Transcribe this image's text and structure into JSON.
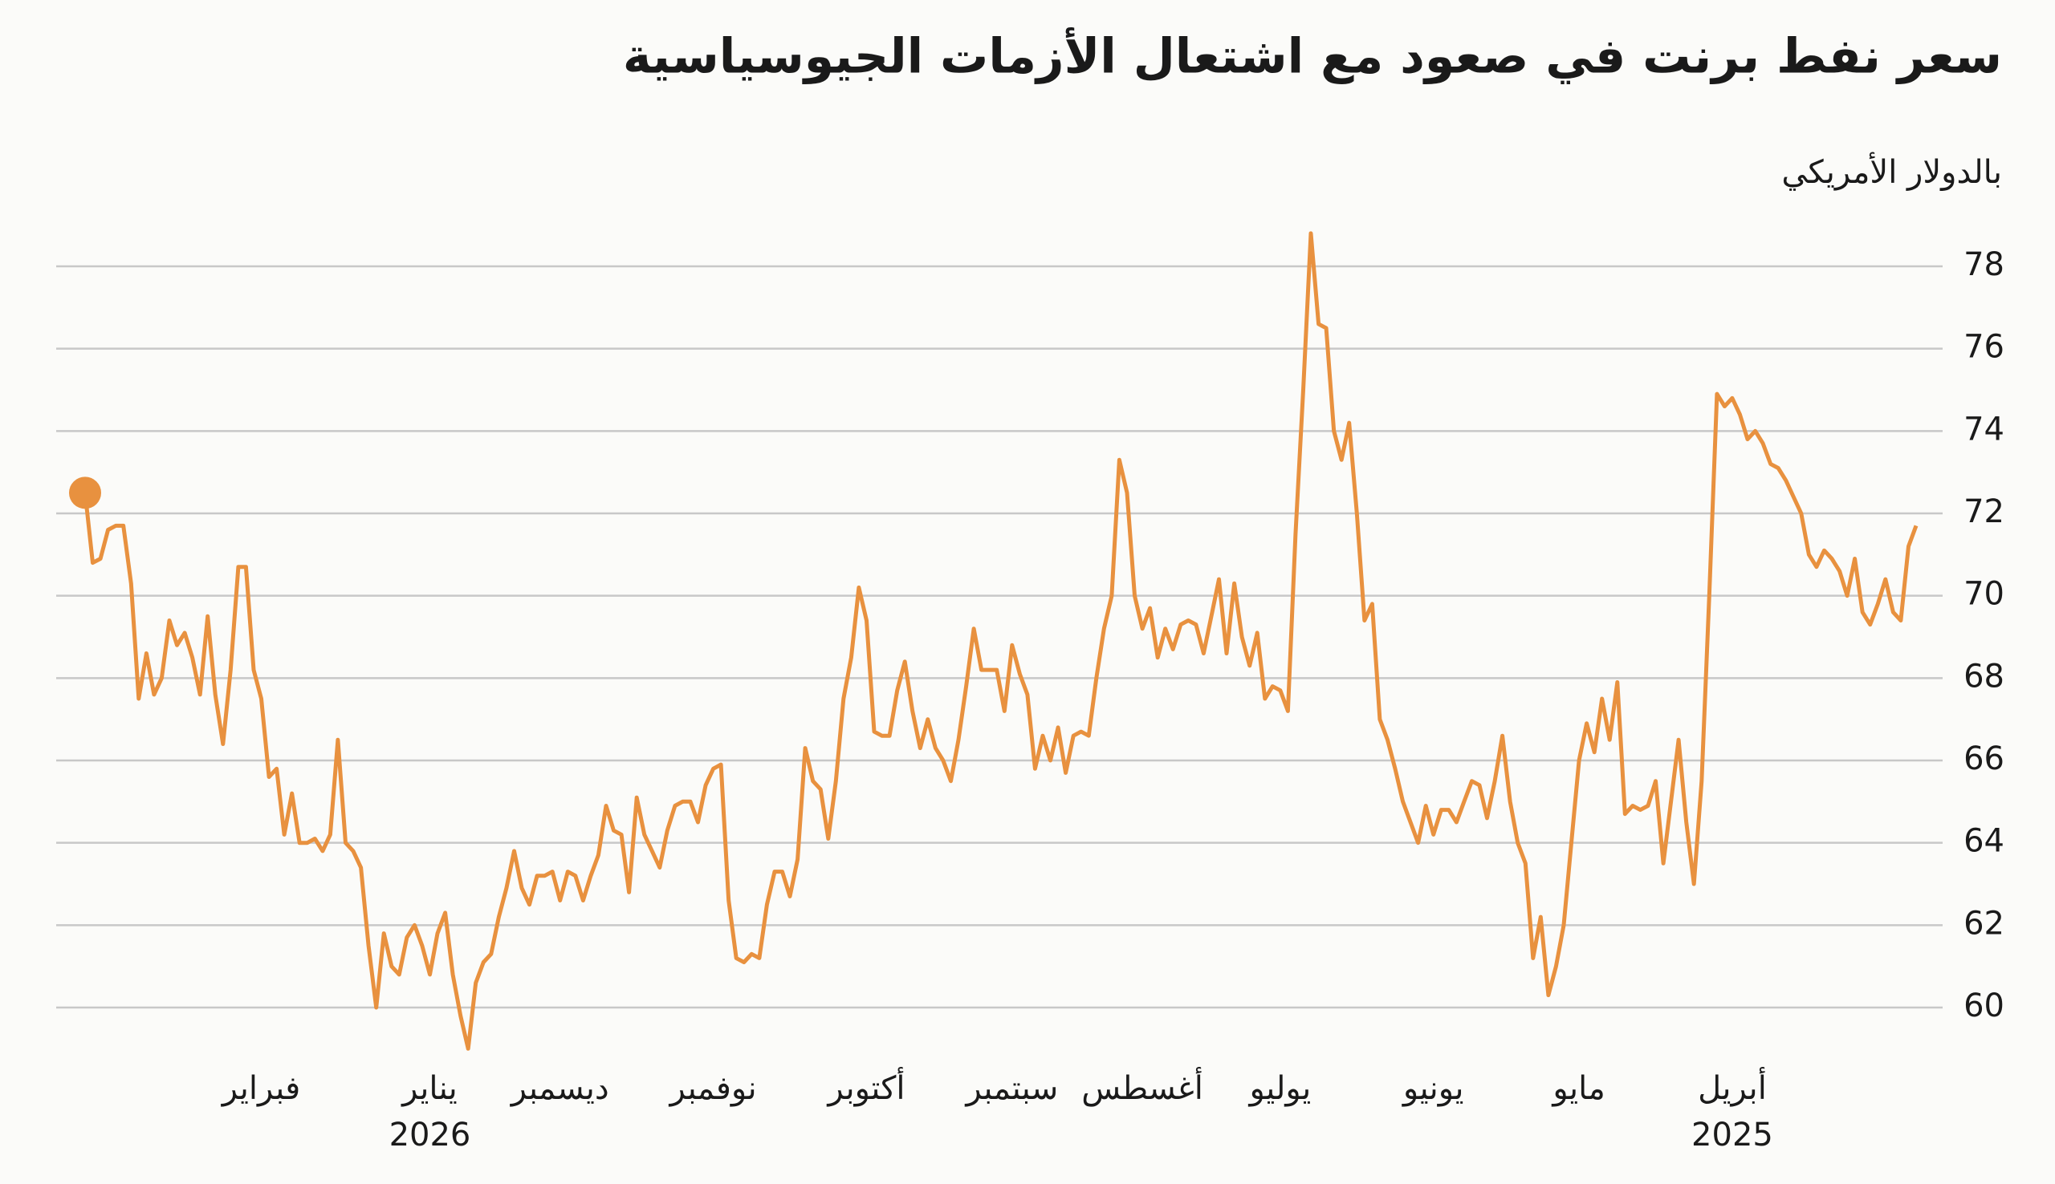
{
  "chart_data": {
    "type": "line",
    "title": "سعر نفط برنت في صعود مع اشتعال الأزمات الجيوسياسية",
    "subtitle": "بالدولار الأمريكي",
    "color": "#e8913f",
    "ylim": [
      58.5,
      79.5
    ],
    "yticks": [
      60,
      62,
      64,
      66,
      68,
      70,
      72,
      74,
      76,
      78
    ],
    "grid": true,
    "x_direction": "right-to-left",
    "end_marker": true,
    "categories": [
      null,
      null,
      null,
      null,
      null,
      null,
      null,
      null,
      null,
      null,
      null,
      null,
      null,
      null,
      null,
      null,
      null,
      null,
      null,
      null,
      null,
      null,
      null,
      null,
      "أبريل\n2025",
      null,
      null,
      null,
      null,
      null,
      null,
      null,
      null,
      null,
      null,
      null,
      null,
      null,
      null,
      null,
      null,
      null,
      null,
      null,
      "مايو",
      null,
      null,
      null,
      null,
      null,
      null,
      null,
      null,
      null,
      null,
      null,
      null,
      null,
      null,
      null,
      null,
      null,
      null,
      "يونيو",
      null,
      null,
      null,
      null,
      null,
      null,
      null,
      null,
      null,
      null,
      null,
      null,
      null,
      null,
      null,
      null,
      null,
      null,
      null,
      "يوليو",
      null,
      null,
      null,
      null,
      null,
      null,
      null,
      null,
      null,
      null,
      null,
      null,
      null,
      null,
      null,
      null,
      null,
      "أغسطس",
      null,
      null,
      null,
      null,
      null,
      null,
      null,
      null,
      null,
      null,
      null,
      null,
      null,
      null,
      null,
      null,
      "سبتمبر",
      null,
      null,
      null,
      null,
      null,
      null,
      null,
      null,
      null,
      null,
      null,
      null,
      null,
      null,
      null,
      null,
      null,
      null,
      "أكتوبر",
      null,
      null,
      null,
      null,
      null,
      null,
      null,
      null,
      null,
      null,
      null,
      null,
      null,
      null,
      null,
      null,
      null,
      null,
      null,
      "نوفمبر",
      null,
      null,
      null,
      null,
      null,
      null,
      null,
      null,
      null,
      null,
      null,
      null,
      null,
      null,
      null,
      null,
      null,
      null,
      null,
      "ديسمبر",
      null,
      null,
      null,
      null,
      null,
      null,
      null,
      null,
      null,
      null,
      null,
      null,
      null,
      null,
      null,
      null,
      "يناير\n2026",
      null,
      null,
      null,
      null,
      null,
      null,
      null,
      null,
      null,
      null,
      null,
      null,
      null,
      null,
      null,
      null,
      null,
      null,
      null,
      null,
      null,
      "فبراير",
      null,
      null,
      null,
      null,
      null,
      null,
      null,
      null,
      null,
      null,
      null,
      null,
      null,
      null,
      null,
      null,
      null,
      null,
      null,
      null,
      null,
      null,
      null
    ],
    "values": [
      71.7,
      71.2,
      69.4,
      69.6,
      70.4,
      69.8,
      69.3,
      69.6,
      70.9,
      70.0,
      70.6,
      70.9,
      71.1,
      70.7,
      71.0,
      72.0,
      72.4,
      72.8,
      73.1,
      73.2,
      73.7,
      74.0,
      73.8,
      74.4,
      74.8,
      74.6,
      74.9,
      70.0,
      65.5,
      63.0,
      64.5,
      66.5,
      65.0,
      63.5,
      65.5,
      64.9,
      64.8,
      64.9,
      64.7,
      67.9,
      66.5,
      67.5,
      66.2,
      66.9,
      66.0,
      64.0,
      62.0,
      61.0,
      60.3,
      62.2,
      61.2,
      63.5,
      64.0,
      65.0,
      66.6,
      65.5,
      64.6,
      65.4,
      65.5,
      65.0,
      64.5,
      64.8,
      64.8,
      64.2,
      64.9,
      64.0,
      64.5,
      65.0,
      65.8,
      66.5,
      67.0,
      69.8,
      69.4,
      72.0,
      74.2,
      73.3,
      74.0,
      76.5,
      76.6,
      78.8,
      75.0,
      71.5,
      67.2,
      67.7,
      67.8,
      67.5,
      69.1,
      68.3,
      69.0,
      70.3,
      68.6,
      70.4,
      69.5,
      68.6,
      69.3,
      69.4,
      69.3,
      68.7,
      69.2,
      68.5,
      69.7,
      69.2,
      70.0,
      72.5,
      73.3,
      70.0,
      69.2,
      68.0,
      66.6,
      66.7,
      66.6,
      65.7,
      66.8,
      66.0,
      66.6,
      65.8,
      67.6,
      68.1,
      68.8,
      67.2,
      68.2,
      68.2,
      68.2,
      69.2,
      67.8,
      66.5,
      65.5,
      66.0,
      66.3,
      67.0,
      66.3,
      67.2,
      68.4,
      67.7,
      66.6,
      66.6,
      66.7,
      69.4,
      70.2,
      68.5,
      67.5,
      65.5,
      64.1,
      65.3,
      65.5,
      66.3,
      63.6,
      62.7,
      63.3,
      63.3,
      62.5,
      61.2,
      61.3,
      61.1,
      61.2,
      62.6,
      65.9,
      65.8,
      65.4,
      64.5,
      65.0,
      65.0,
      64.9,
      64.3,
      63.4,
      63.8,
      64.2,
      65.1,
      62.8,
      64.2,
      64.3,
      64.9,
      63.7,
      63.2,
      62.6,
      63.2,
      63.3,
      62.6,
      63.3,
      63.2,
      63.2,
      62.5,
      62.9,
      63.8,
      62.9,
      62.2,
      61.3,
      61.1,
      60.6,
      59.0,
      59.8,
      60.8,
      62.3,
      61.8,
      60.8,
      61.5,
      62.0,
      61.7,
      60.8,
      61.0,
      61.8,
      60.0,
      61.5,
      63.4,
      63.8,
      64.0,
      66.5,
      64.2,
      63.8,
      64.1,
      64.0,
      64.0,
      65.2,
      64.2,
      65.8,
      65.6,
      67.5,
      68.2,
      70.7,
      70.7,
      68.2,
      66.4,
      67.6,
      69.5,
      67.6,
      68.5,
      69.1,
      68.8,
      69.4,
      68.0,
      67.6,
      68.6,
      67.5,
      70.3,
      71.7,
      71.7,
      71.6,
      70.9,
      70.8,
      72.5
    ]
  }
}
